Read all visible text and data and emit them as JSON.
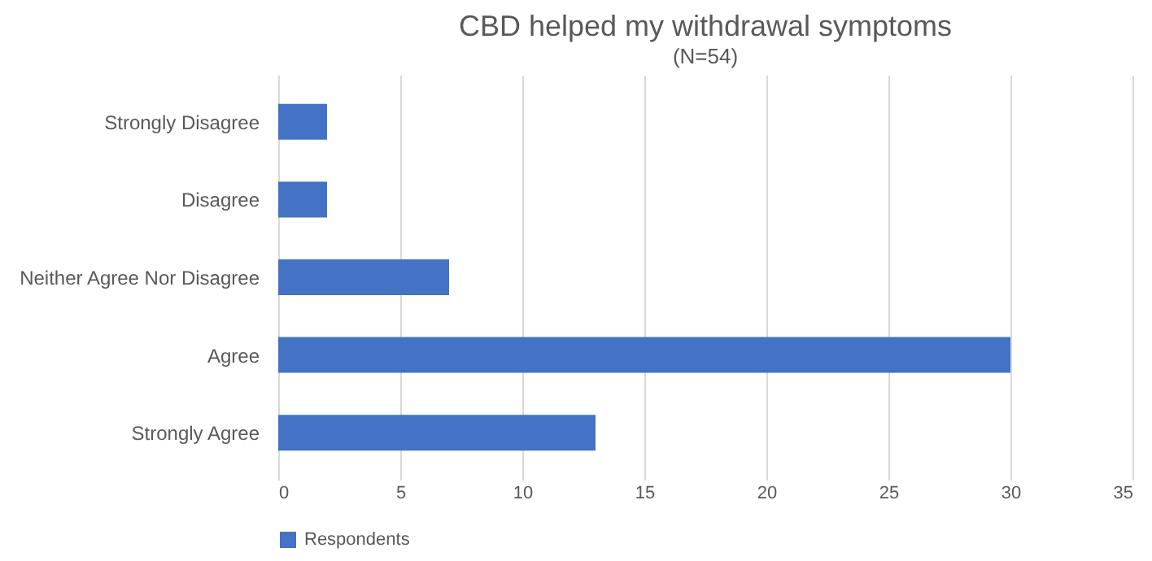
{
  "chart_data": {
    "type": "bar",
    "orientation": "horizontal",
    "title": "CBD helped my withdrawal symptoms",
    "subtitle": "(N=54)",
    "categories": [
      "Strongly Disagree",
      "Disagree",
      "Neither Agree Nor Disagree",
      "Agree",
      "Strongly Agree"
    ],
    "series": [
      {
        "name": "Respondents",
        "color": "#4472c4",
        "values": [
          2,
          2,
          7,
          30,
          13
        ]
      }
    ],
    "xlim": [
      0,
      35
    ],
    "xticks": [
      0,
      5,
      10,
      15,
      20,
      25,
      30,
      35
    ],
    "grid": "x",
    "legend": "bottom"
  }
}
